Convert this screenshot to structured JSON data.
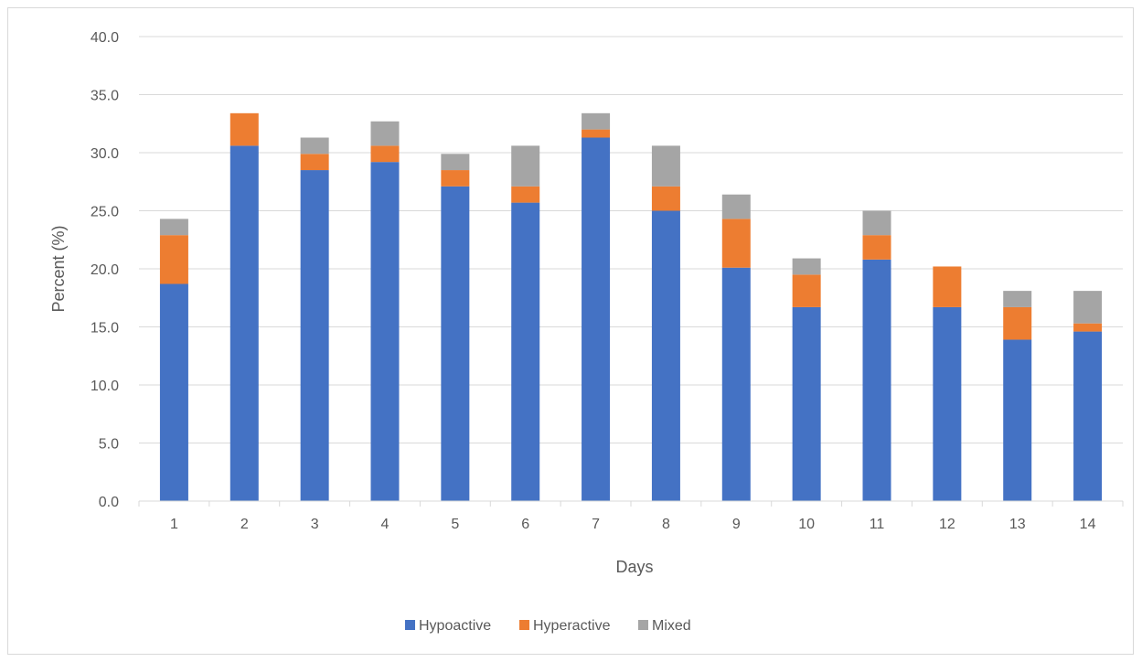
{
  "chart_data": {
    "type": "bar",
    "stacked": true,
    "xlabel": "Days",
    "ylabel": "Percent (%)",
    "ylim": [
      0,
      40
    ],
    "yticks": [
      "0.0",
      "5.0",
      "10.0",
      "15.0",
      "20.0",
      "25.0",
      "30.0",
      "35.0",
      "40.0"
    ],
    "ytick_values": [
      0,
      5,
      10,
      15,
      20,
      25,
      30,
      35,
      40
    ],
    "grid": true,
    "legend_position": "bottom",
    "categories": [
      "1",
      "2",
      "3",
      "4",
      "5",
      "6",
      "7",
      "8",
      "9",
      "10",
      "11",
      "12",
      "13",
      "14"
    ],
    "series": [
      {
        "name": "Hypoactive",
        "color": "#4472c4",
        "values": [
          18.7,
          30.6,
          28.5,
          29.2,
          27.1,
          25.7,
          31.3,
          25.0,
          20.1,
          16.7,
          20.8,
          16.7,
          13.9,
          14.6
        ]
      },
      {
        "name": "Hyperactive",
        "color": "#ed7d31",
        "values": [
          4.2,
          2.8,
          1.4,
          1.4,
          1.4,
          1.4,
          0.7,
          2.1,
          4.2,
          2.8,
          2.1,
          3.5,
          2.8,
          0.7
        ]
      },
      {
        "name": "Mixed",
        "color": "#a5a5a5",
        "values": [
          1.4,
          0.0,
          1.4,
          2.1,
          1.4,
          3.5,
          1.4,
          3.5,
          2.1,
          1.4,
          2.1,
          0.0,
          1.4,
          2.8
        ]
      }
    ]
  }
}
